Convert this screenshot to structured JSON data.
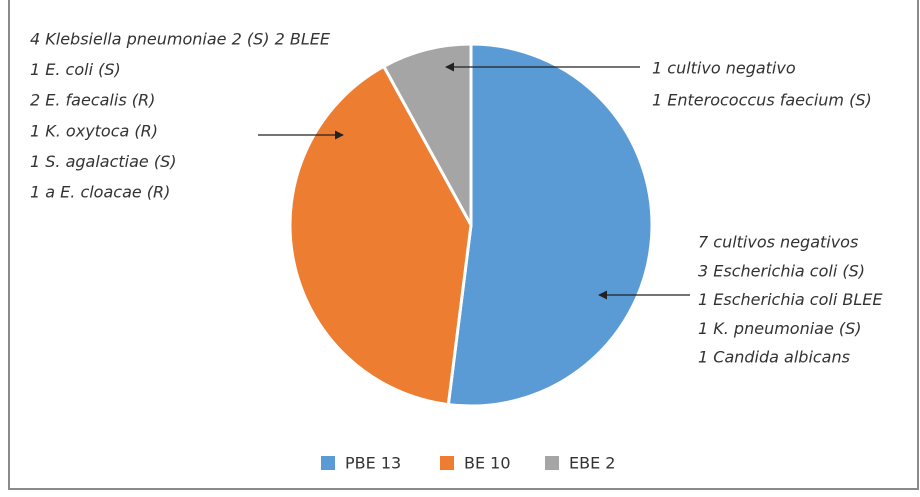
{
  "chart_data": {
    "type": "pie",
    "categories": [
      "PBE 13",
      "BE 10",
      "EBE 2"
    ],
    "values": [
      13,
      10,
      2
    ],
    "colors": [
      "#5b9bd5",
      "#ed7d31",
      "#a5a5a5"
    ],
    "legend": "bottom",
    "annotations": [
      {
        "lines": [
          "4 Klebsiella pneumoniae 2 (S) 2 BLEE",
          "1 E. coli (S)",
          "2 E. faecalis (R)",
          "1 K. oxytoca (R)",
          "1 S. agalactiae (S)",
          "1 a E. cloacae (R)"
        ]
      },
      {
        "lines": [
          "1 cultivo negativo",
          "1 Enterococcus faecium (S)"
        ]
      },
      {
        "lines": [
          "7 cultivos negativos",
          "3 Escherichia coli (S)",
          "1 Escherichia coli BLEE",
          "1 K. pneumoniae (S)",
          "1 Candida albicans"
        ]
      }
    ]
  }
}
